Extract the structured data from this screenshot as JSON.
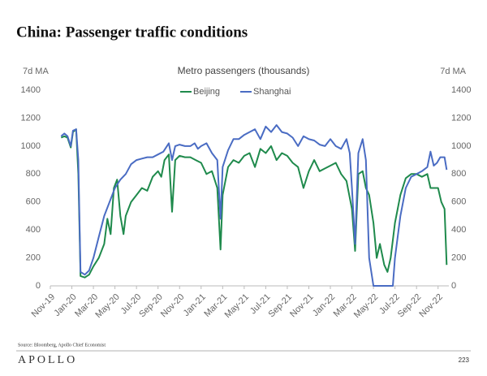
{
  "page_title": "China: Passenger traffic conditions",
  "source": "Source: Bloomberg, Apollo Chief Economist",
  "footer": {
    "brand": "APOLLO",
    "page_number": "223"
  },
  "chart_data": {
    "type": "line",
    "title": "Metro passengers (thousands)",
    "y_label": "7d MA",
    "y2_label": "7d MA",
    "xlim": [
      0,
      37
    ],
    "xticks": [
      {
        "value": 0,
        "label": "Nov-19"
      },
      {
        "value": 2,
        "label": "Jan-20"
      },
      {
        "value": 4,
        "label": "Mar-20"
      },
      {
        "value": 6,
        "label": "May-20"
      },
      {
        "value": 8,
        "label": "Jul-20"
      },
      {
        "value": 10,
        "label": "Sep-20"
      },
      {
        "value": 12,
        "label": "Nov-20"
      },
      {
        "value": 14,
        "label": "Jan-21"
      },
      {
        "value": 16,
        "label": "Mar-21"
      },
      {
        "value": 18,
        "label": "May-21"
      },
      {
        "value": 20,
        "label": "Jul-21"
      },
      {
        "value": 22,
        "label": "Sep-21"
      },
      {
        "value": 24,
        "label": "Nov-21"
      },
      {
        "value": 26,
        "label": "Jan-22"
      },
      {
        "value": 28,
        "label": "Mar-22"
      },
      {
        "value": 30,
        "label": "May-22"
      },
      {
        "value": 32,
        "label": "Jul-22"
      },
      {
        "value": 34,
        "label": "Sep-22"
      },
      {
        "value": 36,
        "label": "Nov-22"
      }
    ],
    "ylim": [
      0,
      1400
    ],
    "yticks": [
      0,
      200,
      400,
      600,
      800,
      1000,
      1200,
      1400
    ],
    "y2lim": [
      0,
      1400
    ],
    "y2ticks": [
      0,
      200,
      400,
      600,
      800,
      1000,
      1200,
      1400
    ],
    "grid": false,
    "series": [
      {
        "name": "Beijing",
        "color": "#1f8a4c",
        "x": [
          1.0,
          1.3,
          1.6,
          1.9,
          2.1,
          2.4,
          2.6,
          2.8,
          3.2,
          3.6,
          4.0,
          4.5,
          5.0,
          5.3,
          5.6,
          5.9,
          6.2,
          6.5,
          6.8,
          7.0,
          7.5,
          8.0,
          8.5,
          9.0,
          9.5,
          10.0,
          10.3,
          10.6,
          11.0,
          11.3,
          11.6,
          12.0,
          12.5,
          13.0,
          13.5,
          14.0,
          14.5,
          15.0,
          15.5,
          15.8,
          16.0,
          16.5,
          17.0,
          17.5,
          18.0,
          18.5,
          19.0,
          19.5,
          20.0,
          20.5,
          21.0,
          21.5,
          22.0,
          22.5,
          23.0,
          23.5,
          24.0,
          24.5,
          25.0,
          25.5,
          26.0,
          26.5,
          27.0,
          27.5,
          28.0,
          28.3,
          28.6,
          29.0,
          29.3,
          29.6,
          30.0,
          30.3,
          30.6,
          31.0,
          31.3,
          31.6,
          32.0,
          32.5,
          33.0,
          33.5,
          34.0,
          34.5,
          35.0,
          35.3,
          35.6,
          36.0,
          36.3,
          36.6,
          36.8
        ],
        "values": [
          1060,
          1070,
          1060,
          990,
          1100,
          1120,
          800,
          70,
          60,
          80,
          140,
          200,
          300,
          480,
          370,
          700,
          760,
          500,
          370,
          500,
          600,
          650,
          700,
          680,
          780,
          820,
          780,
          900,
          940,
          530,
          900,
          930,
          920,
          920,
          900,
          880,
          800,
          820,
          700,
          260,
          650,
          850,
          900,
          880,
          930,
          950,
          850,
          980,
          950,
          1000,
          900,
          950,
          930,
          880,
          850,
          700,
          820,
          900,
          820,
          840,
          860,
          880,
          800,
          750,
          550,
          250,
          800,
          820,
          700,
          650,
          450,
          200,
          300,
          150,
          100,
          200,
          450,
          650,
          770,
          800,
          800,
          780,
          800,
          700,
          700,
          700,
          600,
          550,
          150
        ]
      },
      {
        "name": "Shanghai",
        "color": "#4a6cc3",
        "x": [
          1.0,
          1.3,
          1.6,
          1.9,
          2.1,
          2.4,
          2.6,
          2.8,
          3.2,
          3.6,
          4.0,
          4.5,
          5.0,
          5.5,
          6.0,
          6.5,
          7.0,
          7.5,
          8.0,
          8.5,
          9.0,
          9.5,
          10.0,
          10.5,
          11.0,
          11.3,
          11.6,
          12.0,
          12.5,
          13.0,
          13.4,
          13.7,
          14.0,
          14.5,
          15.0,
          15.5,
          15.8,
          16.0,
          16.5,
          17.0,
          17.5,
          18.0,
          18.5,
          19.0,
          19.5,
          20.0,
          20.5,
          21.0,
          21.5,
          22.0,
          22.5,
          23.0,
          23.5,
          24.0,
          24.5,
          25.0,
          25.5,
          26.0,
          26.5,
          27.0,
          27.5,
          27.8,
          28.0,
          28.3,
          28.6,
          29.0,
          29.3,
          29.6,
          30.0,
          30.5,
          31.0,
          31.5,
          31.8,
          32.0,
          32.5,
          33.0,
          33.5,
          34.0,
          34.5,
          35.0,
          35.3,
          35.6,
          35.9,
          36.2,
          36.6,
          36.8
        ],
        "values": [
          1070,
          1090,
          1070,
          1000,
          1110,
          1120,
          900,
          100,
          80,
          110,
          200,
          350,
          500,
          600,
          700,
          760,
          800,
          870,
          900,
          910,
          920,
          920,
          940,
          960,
          1020,
          900,
          1000,
          1010,
          1000,
          1000,
          1020,
          980,
          1000,
          1020,
          950,
          900,
          480,
          850,
          970,
          1050,
          1050,
          1080,
          1100,
          1120,
          1050,
          1140,
          1100,
          1150,
          1100,
          1090,
          1060,
          1000,
          1070,
          1050,
          1040,
          1010,
          1000,
          1050,
          1000,
          980,
          1050,
          950,
          700,
          300,
          950,
          1050,
          900,
          200,
          0,
          0,
          0,
          0,
          0,
          200,
          500,
          700,
          780,
          800,
          820,
          850,
          960,
          860,
          880,
          920,
          920,
          830
        ]
      }
    ]
  }
}
